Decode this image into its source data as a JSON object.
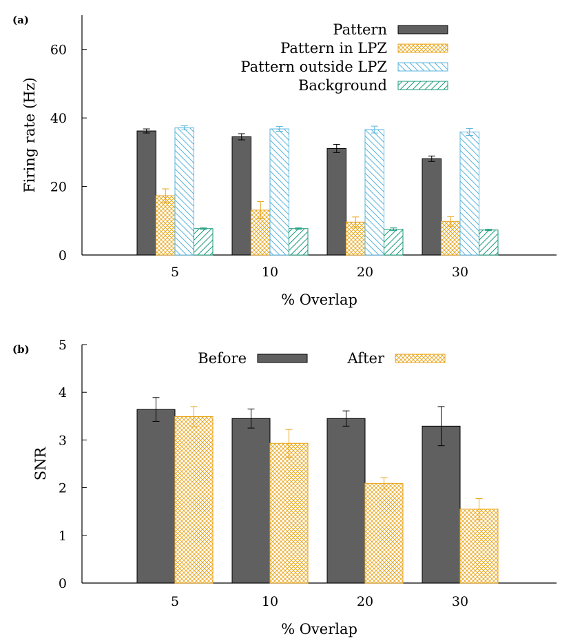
{
  "chart_data": [
    {
      "panel_label": "(a)",
      "type": "bar",
      "xlabel": "% Overlap",
      "ylabel": "Firing rate (Hz)",
      "ylim": [
        0,
        70
      ],
      "yticks": [
        0,
        20,
        40,
        60
      ],
      "categories": [
        "5",
        "10",
        "20",
        "30"
      ],
      "legend_position": "top-right",
      "series": [
        {
          "name": "Pattern",
          "values": [
            36.2,
            34.5,
            31.1,
            28.1
          ],
          "errors": [
            0.6,
            0.9,
            1.2,
            0.8
          ],
          "color": "#606060",
          "pattern": "solid"
        },
        {
          "name": "Pattern in LPZ",
          "values": [
            17.3,
            13.1,
            9.6,
            9.8
          ],
          "errors": [
            2.0,
            2.5,
            1.5,
            1.4
          ],
          "color": "#e8a317",
          "pattern": "crosshatch"
        },
        {
          "name": "Pattern outside LPZ",
          "values": [
            37.1,
            36.8,
            36.6,
            35.9
          ],
          "errors": [
            0.6,
            0.7,
            1.0,
            1.0
          ],
          "color": "#5ab4dc",
          "pattern": "diagonal-back"
        },
        {
          "name": "Background",
          "values": [
            7.7,
            7.7,
            7.5,
            7.3
          ],
          "errors": [
            0.2,
            0.2,
            0.4,
            0.2
          ],
          "color": "#199a7a",
          "pattern": "diagonal-forward"
        }
      ]
    },
    {
      "panel_label": "(b)",
      "type": "bar",
      "xlabel": "% Overlap",
      "ylabel": "SNR",
      "ylim": [
        0,
        5
      ],
      "yticks": [
        0,
        1,
        2,
        3,
        4,
        5
      ],
      "categories": [
        "5",
        "10",
        "20",
        "30"
      ],
      "legend_position": "top",
      "series": [
        {
          "name": "Before",
          "values": [
            3.64,
            3.45,
            3.45,
            3.29
          ],
          "errors": [
            0.25,
            0.2,
            0.16,
            0.41
          ],
          "color": "#606060",
          "pattern": "solid"
        },
        {
          "name": "After",
          "values": [
            3.49,
            2.93,
            2.09,
            1.55
          ],
          "errors": [
            0.21,
            0.29,
            0.12,
            0.22
          ],
          "color": "#e8a317",
          "pattern": "crosshatch"
        }
      ]
    }
  ]
}
